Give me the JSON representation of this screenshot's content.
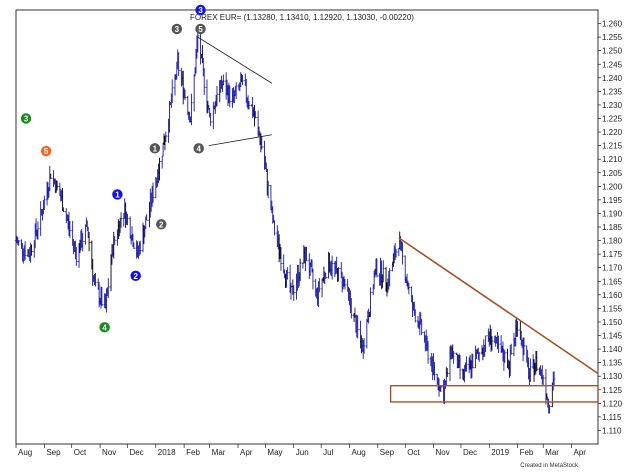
{
  "chart_data": {
    "type": "line",
    "style": "ohlc-bars",
    "title": "FOREX EUR= (1.13280, 1.13410, 1.12920, 1.13030, -0.00220)",
    "credit": "Created in MetaStock",
    "ylim": [
      1.105,
      1.265
    ],
    "grid": false,
    "y_ticks": [
      1.11,
      1.115,
      1.12,
      1.125,
      1.13,
      1.135,
      1.14,
      1.145,
      1.15,
      1.155,
      1.16,
      1.165,
      1.17,
      1.175,
      1.18,
      1.185,
      1.19,
      1.195,
      1.2,
      1.205,
      1.21,
      1.215,
      1.22,
      1.225,
      1.23,
      1.235,
      1.24,
      1.245,
      1.25,
      1.255,
      1.26
    ],
    "x_ticks": [
      "Aug",
      "Sep",
      "Oct",
      "Nov",
      "Dec",
      "2018",
      "Feb",
      "Mar",
      "Apr",
      "May",
      "Jun",
      "Jul",
      "Aug",
      "Sep",
      "Oct",
      "Nov",
      "Dec",
      "2019",
      "Feb",
      "Mar",
      "Apr"
    ],
    "x_start": "2017-08-01",
    "x_end": "2019-04-30",
    "series": [
      {
        "x": [
          "2017-08-01",
          "2017-08-15",
          "2017-08-29",
          "2017-09-08",
          "2017-09-20",
          "2017-10-06",
          "2017-10-18",
          "2017-10-26",
          "2017-11-07",
          "2017-11-15",
          "2017-11-27",
          "2017-12-12",
          "2017-12-20",
          "2018-01-03",
          "2018-01-12",
          "2018-01-25",
          "2018-02-08",
          "2018-02-16",
          "2018-03-01",
          "2018-03-14",
          "2018-03-26",
          "2018-04-05",
          "2018-04-17",
          "2018-04-27",
          "2018-05-10",
          "2018-05-29",
          "2018-06-14",
          "2018-06-26",
          "2018-07-09",
          "2018-07-26",
          "2018-08-15",
          "2018-08-30",
          "2018-09-12",
          "2018-09-24",
          "2018-10-09",
          "2018-10-16",
          "2018-10-31",
          "2018-11-12",
          "2018-11-20",
          "2018-12-03",
          "2018-12-14",
          "2019-01-02",
          "2019-01-10",
          "2019-01-23",
          "2019-02-01",
          "2019-02-14",
          "2019-02-21",
          "2019-03-01",
          "2019-03-07",
          "2019-03-13"
        ],
        "values": [
          1.18,
          1.175,
          1.19,
          1.205,
          1.195,
          1.175,
          1.185,
          1.163,
          1.155,
          1.178,
          1.192,
          1.175,
          1.185,
          1.205,
          1.22,
          1.245,
          1.225,
          1.255,
          1.225,
          1.238,
          1.232,
          1.238,
          1.228,
          1.215,
          1.185,
          1.16,
          1.175,
          1.16,
          1.172,
          1.165,
          1.14,
          1.17,
          1.165,
          1.18,
          1.155,
          1.15,
          1.133,
          1.123,
          1.14,
          1.13,
          1.135,
          1.145,
          1.14,
          1.135,
          1.15,
          1.13,
          1.135,
          1.13,
          1.12,
          1.13
        ]
      }
    ],
    "annotations": {
      "wave_labels": [
        {
          "label": "3",
          "color": "#1a8a1a",
          "x": "2017-08-12",
          "y": 1.225
        },
        {
          "label": "5",
          "color": "#f26522",
          "x": "2017-09-03",
          "y": 1.213
        },
        {
          "label": "1",
          "color": "#1414d8",
          "x": "2017-11-20",
          "y": 1.197
        },
        {
          "label": "2",
          "color": "#1414d8",
          "x": "2017-12-10",
          "y": 1.167
        },
        {
          "label": "4",
          "color": "#1a8a1a",
          "x": "2017-11-06",
          "y": 1.148
        },
        {
          "label": "1",
          "color": "#555555",
          "x": "2017-12-31",
          "y": 1.214
        },
        {
          "label": "2",
          "color": "#555555",
          "x": "2018-01-07",
          "y": 1.186
        },
        {
          "label": "3",
          "color": "#555555",
          "x": "2018-01-24",
          "y": 1.258
        },
        {
          "label": "3",
          "color": "#1414d8",
          "x": "2018-02-19",
          "y": 1.265
        },
        {
          "label": "5",
          "color": "#555555",
          "x": "2018-02-19",
          "y": 1.258
        },
        {
          "label": "4",
          "color": "#555555",
          "x": "2018-02-17",
          "y": 1.214
        }
      ],
      "trendlines": [
        {
          "color": "#222222",
          "x1": "2018-02-16",
          "y1": 1.255,
          "x2": "2018-05-08",
          "y2": 1.238
        },
        {
          "color": "#222222",
          "x1": "2018-02-28",
          "y1": 1.215,
          "x2": "2018-05-08",
          "y2": 1.219
        },
        {
          "color": "#a0522d",
          "x1": "2018-09-24",
          "y1": 1.181,
          "x2": "2019-04-30",
          "y2": 1.131
        }
      ],
      "boxes": [
        {
          "color": "#a0522d",
          "x1": "2018-09-15",
          "x2": "2019-04-30",
          "y1": 1.1205,
          "y2": 1.1265
        }
      ]
    }
  }
}
